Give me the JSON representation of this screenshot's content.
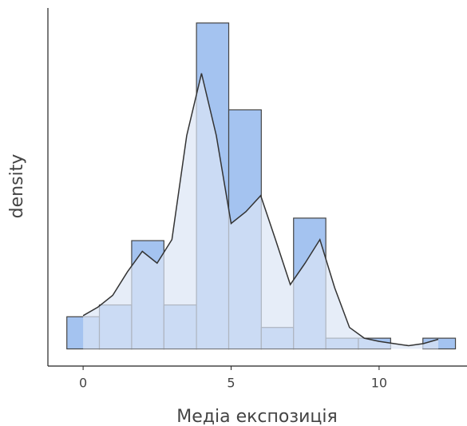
{
  "chart_data": {
    "type": "histogram",
    "x_label": "Медіа експозиція",
    "y_label": "density",
    "bins": [
      -0.55,
      0.55,
      1.64,
      2.73,
      3.83,
      4.92,
      6.02,
      7.11,
      8.2,
      9.3,
      10.39,
      11.48,
      12.58
    ],
    "values": [
      0.03,
      0.041,
      0.101,
      0.041,
      0.304,
      0.223,
      0.02,
      0.122,
      0.01,
      0.01,
      0,
      0.01
    ],
    "color": "#a4c3f0",
    "edge_color": "#444444",
    "density": {
      "x": [
        0,
        0.5,
        1,
        1.5,
        2,
        2.5,
        3,
        3.5,
        4,
        4.5,
        5,
        5.5,
        6,
        6.5,
        7,
        7.5,
        8,
        8.5,
        9,
        9.5,
        10,
        10.5,
        11,
        11.5,
        12
      ],
      "y": [
        0.031,
        0.039,
        0.05,
        0.072,
        0.091,
        0.08,
        0.102,
        0.199,
        0.257,
        0.199,
        0.117,
        0.128,
        0.143,
        0.102,
        0.06,
        0.08,
        0.102,
        0.057,
        0.02,
        0.01,
        0.007,
        0.005,
        0.003,
        0.005,
        0.009
      ],
      "color": "#dce6f5",
      "line_color": "#333333"
    },
    "xlim": [
      -1.19,
      12.97
    ],
    "ylim": [
      -0.016,
      0.318
    ],
    "xticks": [
      0,
      5,
      10
    ]
  }
}
